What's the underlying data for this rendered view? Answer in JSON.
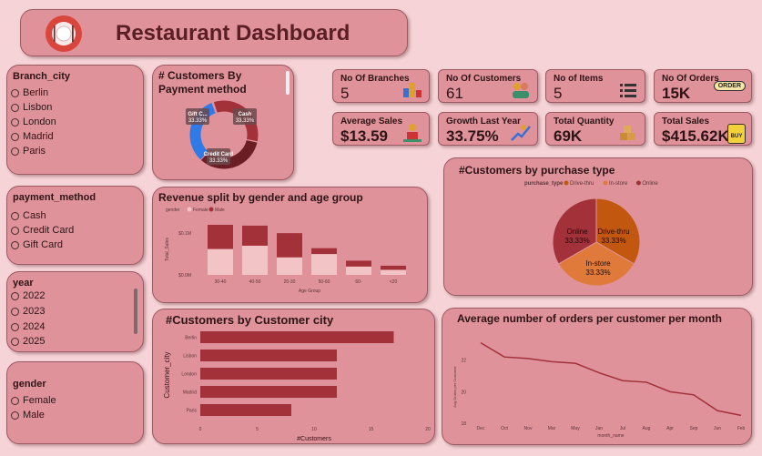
{
  "header": {
    "title": "Restaurant Dashboard"
  },
  "slicers": {
    "branch_city": {
      "title": "Branch_city",
      "options": [
        "Berlin",
        "Lisbon",
        "London",
        "Madrid",
        "Paris"
      ]
    },
    "payment_method": {
      "title": "payment_method",
      "options": [
        "Cash",
        "Credit Card",
        "Gift Card"
      ]
    },
    "year": {
      "title": "year",
      "options": [
        "2022",
        "2023",
        "2024",
        "2025"
      ]
    },
    "gender": {
      "title": "gender",
      "options": [
        "Female",
        "Male"
      ]
    }
  },
  "kpis": [
    {
      "label": "No Of Branches",
      "value": "5"
    },
    {
      "label": "No Of Customers",
      "value": "61"
    },
    {
      "label": "No of Items",
      "value": "5"
    },
    {
      "label": "No Of Orders",
      "value": "15K",
      "badge": "ORDER"
    },
    {
      "label": "Average Sales",
      "value": "$13.59"
    },
    {
      "label": "Growth Last Year",
      "value": "33.75%"
    },
    {
      "label": "Total Quantity",
      "value": "69K"
    },
    {
      "label": "Total Sales",
      "value": "$415.62K",
      "badge": "BUY"
    }
  ],
  "colors": {
    "background": "#f5d3d6",
    "card": "#e0929a",
    "dark_red": "#a3313a",
    "maroon": "#6b1f24",
    "blue": "#2f7ae6",
    "orange": "#e07a3a",
    "brown_orange": "#c2570f",
    "light_pink": "#f2c4c6"
  },
  "chart_data": [
    {
      "type": "pie",
      "title": "# Customers By Payment method",
      "donut": true,
      "labels": [
        "Gift C...",
        "Cash",
        "Credit Card"
      ],
      "slice_labels": [
        "Gift C...",
        "Cash",
        "Credit Card"
      ],
      "values": [
        33.33,
        33.33,
        33.33
      ],
      "value_labels": [
        "33.33%",
        "33.33%",
        "33.33%"
      ],
      "colors": [
        "#2f7ae6",
        "#a3313a",
        "#6b1f24"
      ]
    },
    {
      "type": "bar",
      "title": "Revenue split by gender and age group",
      "stacked": true,
      "legend_title": "gender",
      "categories": [
        "30-40",
        "40-50",
        "20-30",
        "50-60",
        "60-",
        "<20"
      ],
      "series": [
        {
          "name": "Female",
          "values": [
            0.31,
            0.35,
            0.21,
            0.25,
            0.1,
            0.06
          ]
        },
        {
          "name": "Male",
          "values": [
            0.29,
            0.24,
            0.29,
            0.07,
            0.07,
            0.05
          ]
        }
      ],
      "ylabel": "Total_Sales",
      "xlabel": "Age Group",
      "ytick_labels": [
        "$0.1M",
        "$0.0M"
      ],
      "yticks": [
        0.1,
        0.0
      ],
      "ylim": [
        0,
        0.6
      ]
    },
    {
      "type": "pie",
      "title": "#Customers by purchase type",
      "legend_title": "purchase_type",
      "labels": [
        "Drive-thru",
        "In-store",
        "Online"
      ],
      "slice_labels": [
        "Drive-thru",
        "In-store",
        "Online"
      ],
      "values": [
        33.33,
        33.33,
        33.33
      ],
      "value_labels": [
        "33.33%",
        "33.33%",
        "33.33%"
      ],
      "colors": [
        "#c2570f",
        "#e07a3a",
        "#a3313a"
      ]
    },
    {
      "type": "bar",
      "orientation": "horizontal",
      "title": "#Customers by Customer city",
      "categories": [
        "Berlin",
        "Lisbon",
        "London",
        "Madrid",
        "Paris"
      ],
      "values": [
        17,
        12,
        12,
        12,
        8
      ],
      "xlabel": "#Customers",
      "ylabel": "Customer_city",
      "xlim": [
        0,
        20
      ],
      "xticks": [
        0,
        5,
        10,
        15,
        20
      ]
    },
    {
      "type": "line",
      "title": "Average number of orders per customer per month",
      "x": [
        "Dec",
        "Oct",
        "Nov",
        "Mar",
        "May",
        "Jan",
        "Jul",
        "Aug",
        "Apr",
        "Sep",
        "Jun",
        "Feb"
      ],
      "values": [
        23.1,
        22.2,
        22.1,
        21.9,
        21.8,
        21.2,
        20.7,
        20.6,
        20.0,
        19.8,
        18.8,
        18.5
      ],
      "xlabel": "month_name",
      "ylabel": "Avg Orders per Customer",
      "ylim": [
        18,
        24
      ],
      "yticks": [
        18,
        20,
        22
      ]
    }
  ]
}
